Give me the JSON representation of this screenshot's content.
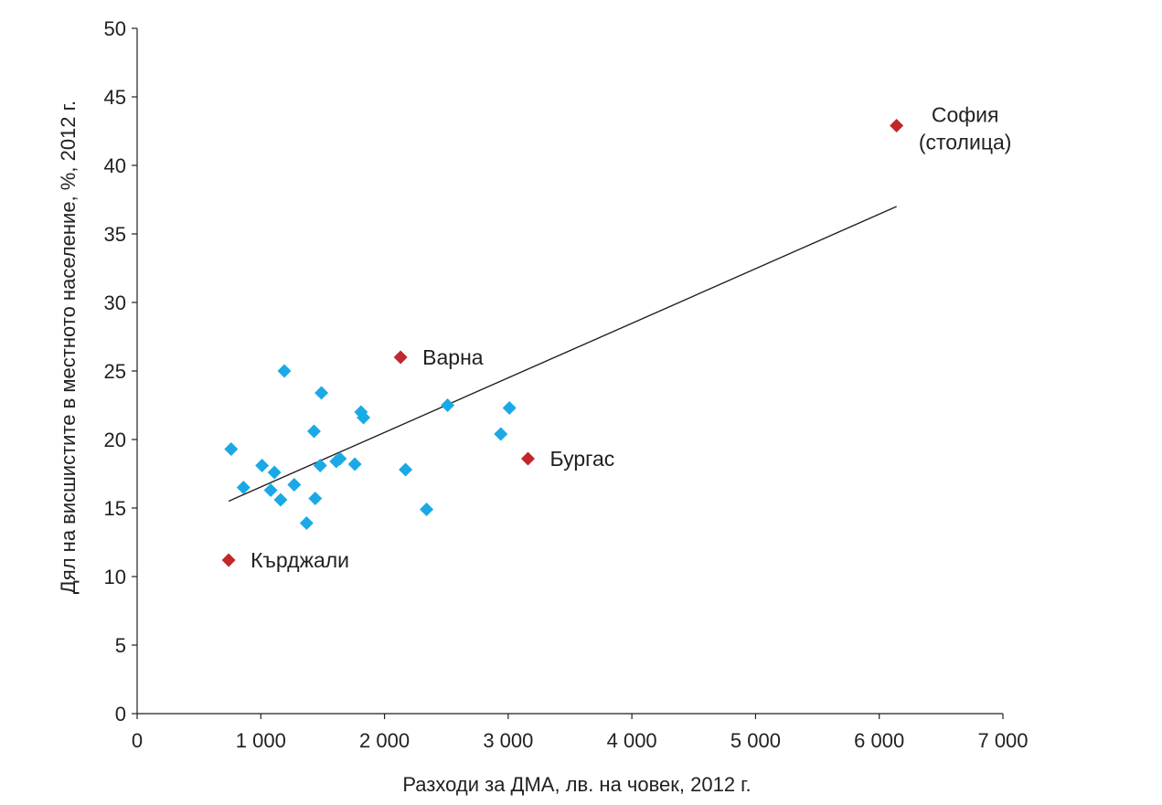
{
  "chart_data": {
    "type": "scatter",
    "title": "",
    "xlabel": "Разходи за ДМА, лв. на човек, 2012 г.",
    "ylabel": "Дял на висшистите в местното население, %, 2012 г.",
    "xlim": [
      0,
      7000
    ],
    "ylim": [
      0,
      50
    ],
    "x_ticks": [
      0,
      1000,
      2000,
      3000,
      4000,
      5000,
      6000,
      7000
    ],
    "x_tick_labels": [
      "0",
      "1 000",
      "2 000",
      "3 000",
      "4 000",
      "5 000",
      "6 000",
      "7 000"
    ],
    "y_ticks": [
      0,
      5,
      10,
      15,
      20,
      25,
      30,
      35,
      40,
      45,
      50
    ],
    "y_tick_labels": [
      "0",
      "5",
      "10",
      "15",
      "20",
      "25",
      "30",
      "35",
      "40",
      "45",
      "50"
    ],
    "grid": false,
    "legend": "none",
    "series": [
      {
        "color": "#1ba9e6",
        "marker": "diamond",
        "points": [
          {
            "x": 760,
            "y": 19.3
          },
          {
            "x": 860,
            "y": 16.5
          },
          {
            "x": 1010,
            "y": 18.1
          },
          {
            "x": 1080,
            "y": 16.3
          },
          {
            "x": 1110,
            "y": 17.6
          },
          {
            "x": 1160,
            "y": 15.6
          },
          {
            "x": 1190,
            "y": 25.0
          },
          {
            "x": 1270,
            "y": 16.7
          },
          {
            "x": 1370,
            "y": 13.9
          },
          {
            "x": 1430,
            "y": 20.6
          },
          {
            "x": 1440,
            "y": 15.7
          },
          {
            "x": 1480,
            "y": 18.1
          },
          {
            "x": 1490,
            "y": 23.4
          },
          {
            "x": 1610,
            "y": 18.4
          },
          {
            "x": 1640,
            "y": 18.6
          },
          {
            "x": 1760,
            "y": 18.2
          },
          {
            "x": 1810,
            "y": 22.0
          },
          {
            "x": 1830,
            "y": 21.6
          },
          {
            "x": 2170,
            "y": 17.8
          },
          {
            "x": 2340,
            "y": 14.9
          },
          {
            "x": 2510,
            "y": 22.5
          },
          {
            "x": 2940,
            "y": 20.4
          },
          {
            "x": 3010,
            "y": 22.3
          }
        ]
      },
      {
        "color": "#c1272d",
        "marker": "diamond",
        "points": [
          {
            "x": 740,
            "y": 11.2,
            "label": "Кърджали"
          },
          {
            "x": 2130,
            "y": 26.0,
            "label": "Варна"
          },
          {
            "x": 3160,
            "y": 18.6,
            "label": "Бургас"
          },
          {
            "x": 6140,
            "y": 42.9,
            "label_lines": [
              "София",
              "(столица)"
            ]
          }
        ]
      }
    ],
    "trendline": {
      "x": [
        740,
        6140
      ],
      "y": [
        15.5,
        37.0
      ],
      "color": "#231f20"
    }
  }
}
